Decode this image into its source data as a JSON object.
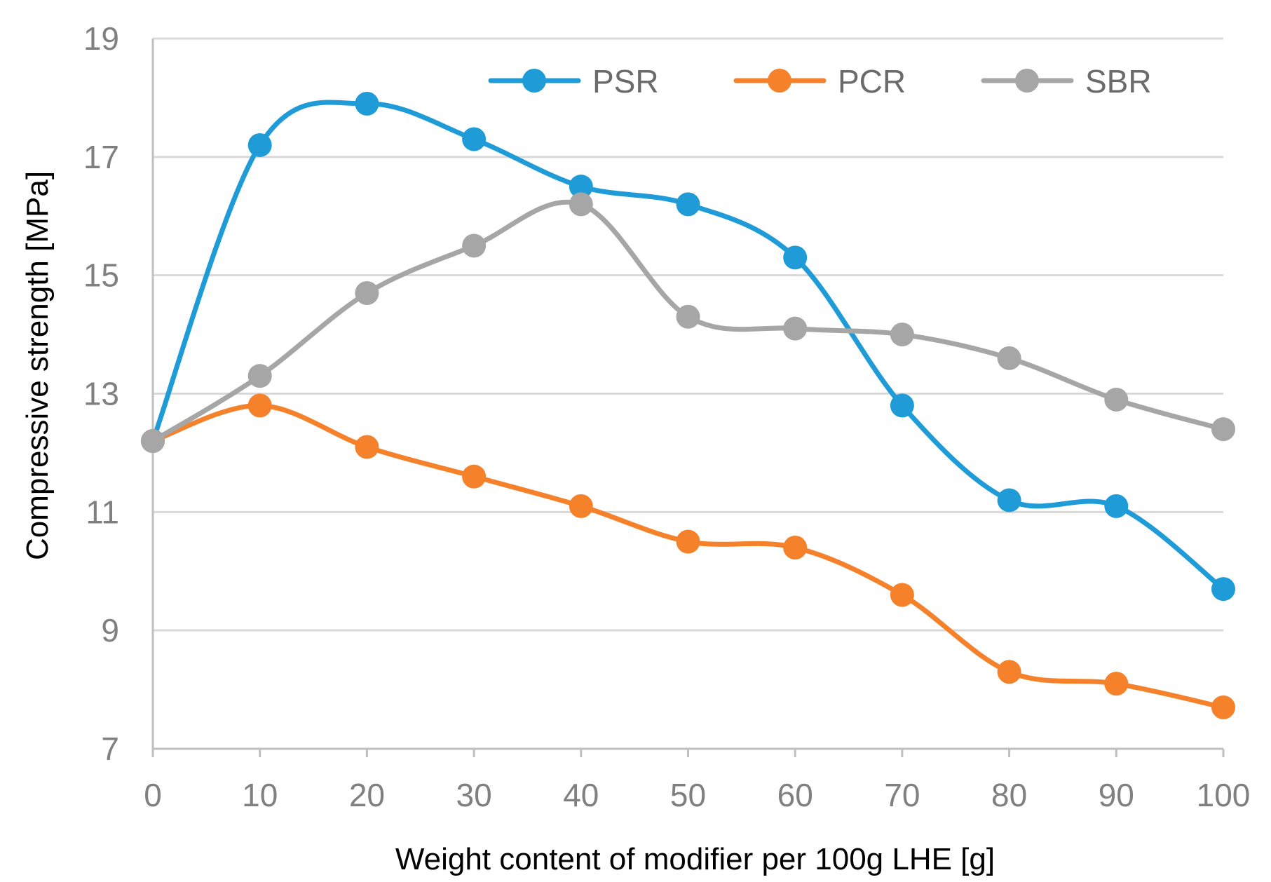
{
  "chart_data": {
    "type": "line",
    "title": "",
    "xlabel": "Weight content of modifier per 100g LHE [g]",
    "ylabel": "Compressive strength [MPa]",
    "x": [
      0,
      10,
      20,
      30,
      40,
      50,
      60,
      70,
      80,
      90,
      100
    ],
    "x_tick_labels": [
      "0",
      "10",
      "20",
      "30",
      "40",
      "50",
      "60",
      "70",
      "80",
      "90",
      "100"
    ],
    "y_tick_labels": [
      "7",
      "9",
      "11",
      "13",
      "15",
      "17",
      "19"
    ],
    "y_ticks": [
      7,
      9,
      11,
      13,
      15,
      17,
      19
    ],
    "xlim": [
      0,
      100
    ],
    "ylim": [
      7,
      19
    ],
    "grid": "horizontal",
    "legend_position": "top-right",
    "series": [
      {
        "name": "PSR",
        "color": "#1F9CD8",
        "values": [
          12.2,
          17.2,
          17.9,
          17.3,
          16.5,
          16.2,
          15.3,
          12.8,
          11.2,
          11.1,
          9.7
        ]
      },
      {
        "name": "PCR",
        "color": "#F5812B",
        "values": [
          12.2,
          12.8,
          12.1,
          11.6,
          11.1,
          10.5,
          10.4,
          9.6,
          8.3,
          8.1,
          7.7
        ]
      },
      {
        "name": "SBR",
        "color": "#A6A6A6",
        "values": [
          12.2,
          13.3,
          14.7,
          15.5,
          16.2,
          14.3,
          14.1,
          14.0,
          13.6,
          12.9,
          12.4
        ]
      }
    ]
  }
}
